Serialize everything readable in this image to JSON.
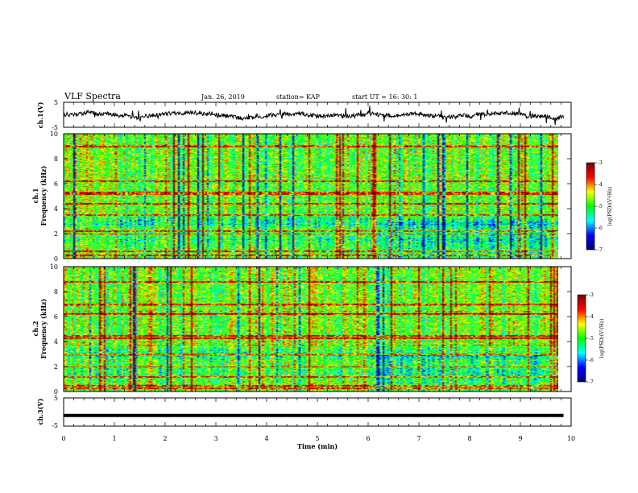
{
  "header": {
    "title": "VLF Spectra",
    "date": "Jan. 26, 2019",
    "station": "station= KAP",
    "start": "start UT =  16: 30: 1"
  },
  "chart_data": [
    {
      "type": "line",
      "name": "ch1-voltage",
      "ylabel": "ch.1(V)",
      "ylim": [
        -5,
        5
      ],
      "yticks": [
        "5",
        "-5"
      ],
      "xlim": [
        0,
        10
      ]
    },
    {
      "type": "heatmap",
      "name": "ch1-spectrogram",
      "ylabel_top": "ch.1",
      "ylabel": "Frequency (kHz)",
      "ylim": [
        0,
        10
      ],
      "yticks": [
        "0",
        "2",
        "4",
        "6",
        "8",
        "10"
      ],
      "colorbar_label": "log(PSD)(V²/Hz)",
      "colorbar_ticks": [
        "-3",
        "-4",
        "-5",
        "-6",
        "-7"
      ],
      "colorbar_range": [
        -7,
        -3
      ]
    },
    {
      "type": "heatmap",
      "name": "ch2-spectrogram",
      "ylabel_top": "ch.2",
      "ylabel": "Frequency (kHz)",
      "ylim": [
        0,
        10
      ],
      "yticks": [
        "0",
        "2",
        "4",
        "6",
        "8",
        "10"
      ],
      "colorbar_label": "log(PSD)(V²/Hz)",
      "colorbar_ticks": [
        "-3",
        "-4",
        "-5",
        "-6",
        "-7"
      ],
      "colorbar_range": [
        -7,
        -3
      ]
    },
    {
      "type": "line",
      "name": "ch3-voltage",
      "ylabel": "ch.3(V)",
      "ylim": [
        -5,
        5
      ],
      "yticks": [
        "5",
        "-5"
      ],
      "x": [
        0,
        9.85
      ],
      "y": [
        -1.2,
        -1.2
      ]
    }
  ],
  "xaxis": {
    "label": "Time (min)",
    "ticks": [
      "0",
      "1",
      "2",
      "3",
      "4",
      "5",
      "6",
      "7",
      "8",
      "9",
      "10"
    ],
    "xlim": [
      0,
      10
    ]
  },
  "colors": {
    "colormap": [
      "#00007a",
      "#0000ff",
      "#00ffff",
      "#00ff00",
      "#ffff00",
      "#ff0000",
      "#7a0000"
    ]
  }
}
